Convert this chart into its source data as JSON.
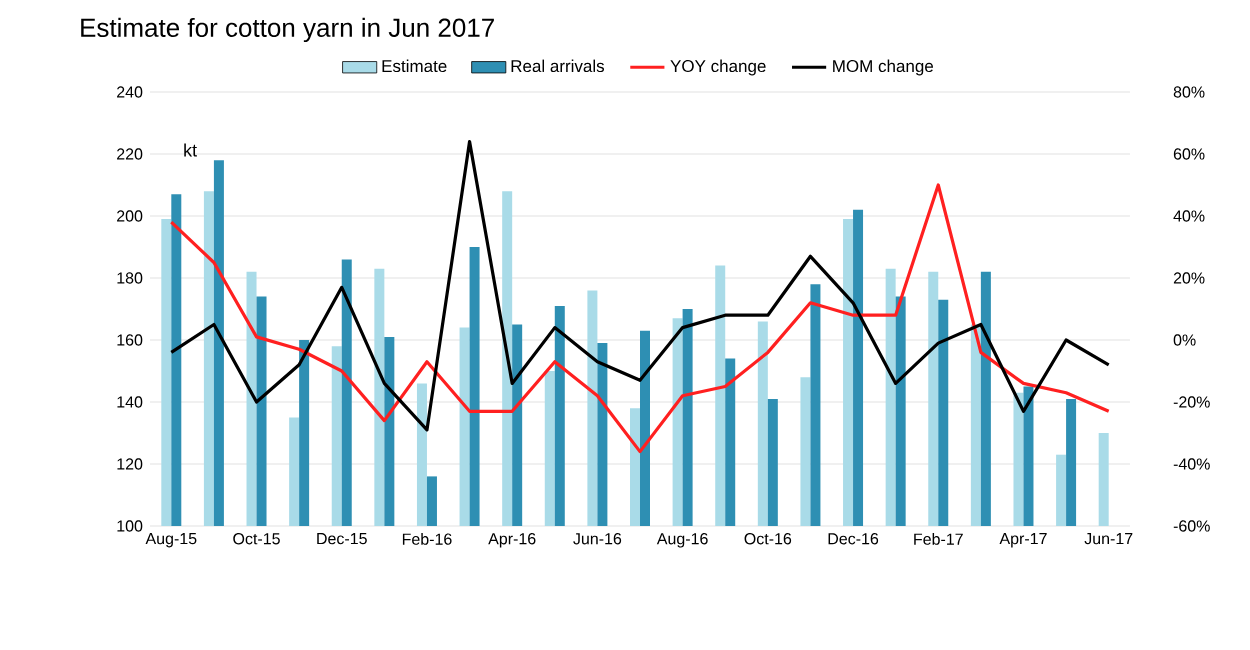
{
  "chart_data": {
    "type": "bar",
    "title": "Estimate for cotton yarn in Jun 2017",
    "annotations": [
      "kt"
    ],
    "categories": [
      "Aug-15",
      null,
      "Oct-15",
      null,
      "Dec-15",
      null,
      "Feb-16",
      null,
      "Apr-16",
      null,
      "Jun-16",
      null,
      "Aug-16",
      null,
      "Oct-16",
      null,
      "Dec-16",
      null,
      "Feb-17",
      null,
      "Apr-17",
      null,
      "Jun-17"
    ],
    "series": [
      {
        "name": "Estimate",
        "color": "#a9dbe8",
        "values": [
          199,
          208,
          182,
          135,
          158,
          183,
          146,
          164,
          208,
          150,
          176,
          138,
          167,
          184,
          166,
          148,
          199,
          183,
          182,
          165,
          143,
          123,
          130
        ]
      },
      {
        "name": "Real arrivals",
        "color": "#2e8fb3",
        "values": [
          207,
          218,
          174,
          160,
          186,
          161,
          116,
          190,
          165,
          171,
          159,
          163,
          170,
          154,
          141,
          178,
          202,
          174,
          173,
          182,
          145,
          141,
          null
        ]
      },
      {
        "name": "YOY change",
        "type": "line",
        "axis": "y2",
        "color": "#ff2020",
        "values": [
          38,
          25,
          1,
          -3,
          -10,
          -26,
          -7,
          -23,
          -23,
          -7,
          -18,
          -36,
          -18,
          -15,
          -4,
          12,
          8,
          8,
          50,
          -4,
          -14,
          -17,
          -23
        ]
      },
      {
        "name": "MOM change",
        "type": "line",
        "axis": "y2",
        "color": "#000000",
        "values": [
          -4,
          5,
          -20,
          -8,
          17,
          -14,
          -29,
          64,
          -14,
          4,
          -7,
          -13,
          4,
          8,
          8,
          27,
          12,
          -14,
          -1,
          5,
          -23,
          0,
          -8
        ]
      }
    ],
    "ylim": [
      100,
      240
    ],
    "yticks": [
      100,
      120,
      140,
      160,
      180,
      200,
      220,
      240
    ],
    "y2lim": [
      -60,
      80
    ],
    "y2ticks": [
      {
        "value": -60,
        "label": "-60%"
      },
      {
        "value": -40,
        "label": "-40%"
      },
      {
        "value": -20,
        "label": "-20%"
      },
      {
        "value": 0,
        "label": "0%"
      },
      {
        "value": 20,
        "label": "20%"
      },
      {
        "value": 40,
        "label": "40%"
      },
      {
        "value": 60,
        "label": "60%"
      },
      {
        "value": 80,
        "label": "80%"
      }
    ],
    "grid": "y",
    "legend": "top",
    "marker": "none",
    "line_style": "solid"
  }
}
